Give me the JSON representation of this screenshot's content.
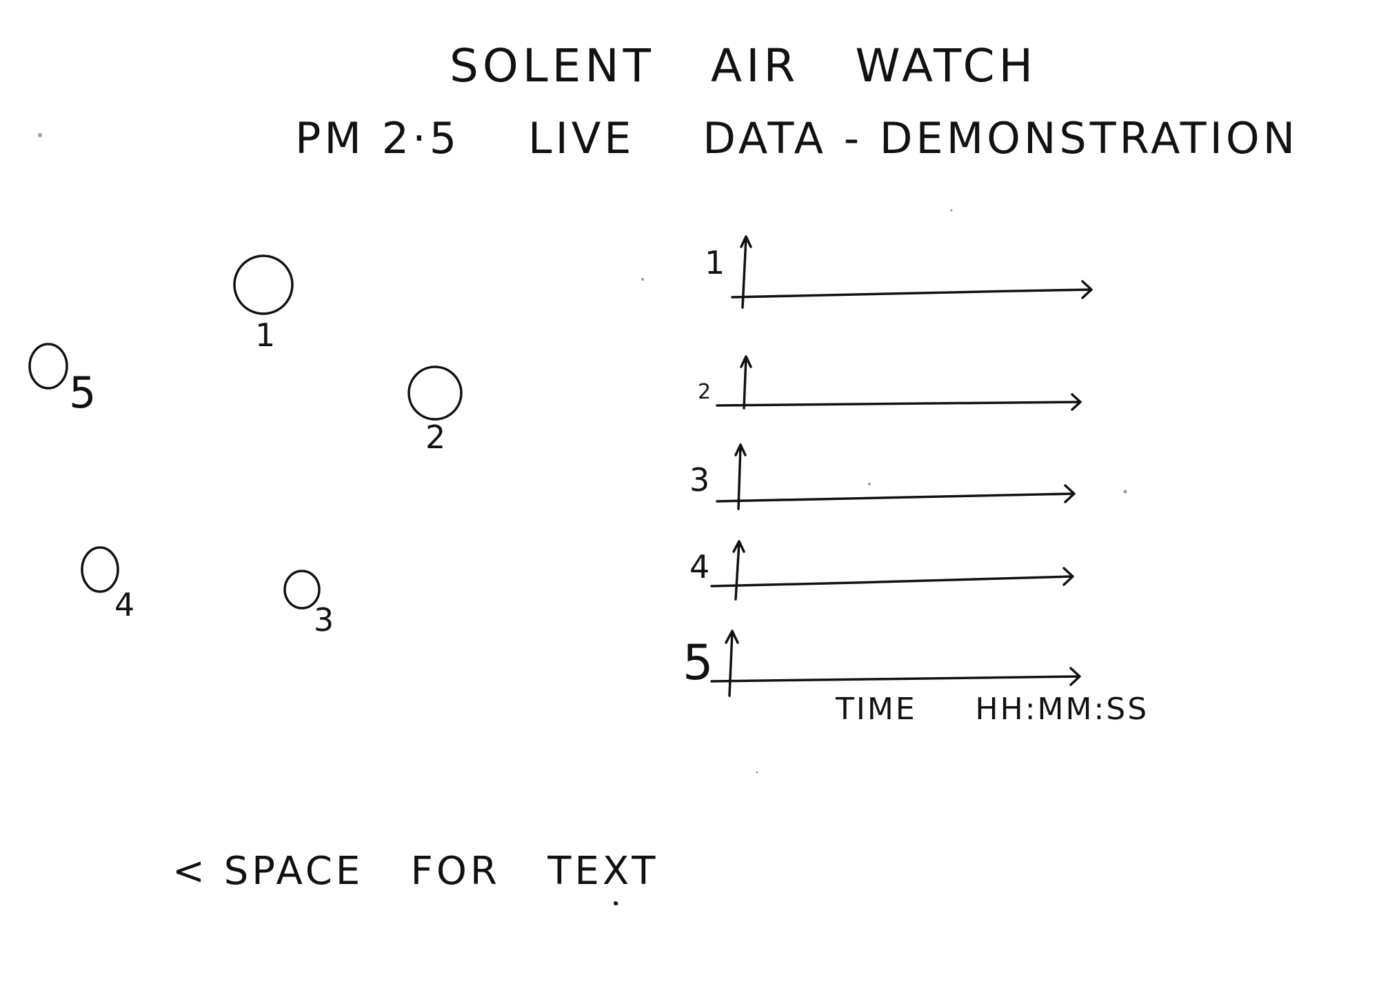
{
  "title": "SOLENT   AIR   WATCH",
  "subtitle": "PM 2·5    LIVE    DATA - DEMONSTRATION",
  "map_sensors": [
    {
      "id": "1"
    },
    {
      "id": "2"
    },
    {
      "id": "3"
    },
    {
      "id": "4"
    },
    {
      "id": "5"
    }
  ],
  "charts": [
    {
      "label": "1"
    },
    {
      "label": "2"
    },
    {
      "label": "3"
    },
    {
      "label": "4"
    },
    {
      "label": "5"
    }
  ],
  "time_axis_label": "TIME     HH:MM:SS",
  "footer_note": "< SPACE   FOR   TEXT"
}
